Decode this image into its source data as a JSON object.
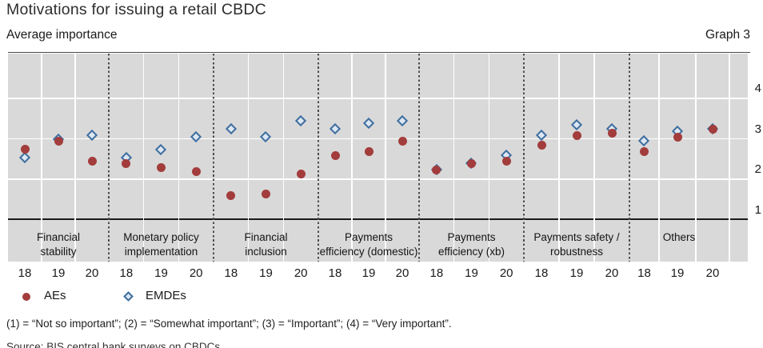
{
  "header": {
    "title": "Motivations for issuing a retail CBDC",
    "subtitle": "Average importance",
    "graph_label": "Graph 3"
  },
  "chart_data": {
    "type": "scatter",
    "title": "Motivations for issuing a retail CBDC",
    "ylabel": "Average importance",
    "yticks": [
      "4",
      "3",
      "2",
      "1"
    ],
    "ylim": [
      0.85,
      4.9
    ],
    "grid": true,
    "legend_position": "bottom-left",
    "categories": [
      {
        "label_lines": [
          "Financial",
          "stability"
        ]
      },
      {
        "label_lines": [
          "Monetary policy",
          "implementation"
        ]
      },
      {
        "label_lines": [
          "Financial",
          "inclusion"
        ]
      },
      {
        "label_lines": [
          "Payments",
          "efficiency (domestic)"
        ]
      },
      {
        "label_lines": [
          "Payments",
          "efficiency (xb)"
        ]
      },
      {
        "label_lines": [
          "Payments safety /",
          "robustness"
        ]
      },
      {
        "label_lines": [
          "Others"
        ]
      }
    ],
    "years": [
      "18",
      "19",
      "20"
    ],
    "series": [
      {
        "name": "AEs",
        "marker": "circle",
        "color": "#a33c3c",
        "values": [
          [
            2.5,
            2.7,
            2.2
          ],
          [
            2.15,
            2.05,
            1.95
          ],
          [
            1.35,
            1.4,
            1.9
          ],
          [
            2.35,
            2.45,
            2.7
          ],
          [
            2.0,
            2.15,
            2.2
          ],
          [
            2.6,
            2.85,
            2.9
          ],
          [
            2.45,
            2.8,
            3.0
          ]
        ]
      },
      {
        "name": "EMDEs",
        "marker": "diamond",
        "color": "#3f6e9e",
        "fill": "#dce7f3",
        "values": [
          [
            2.3,
            2.75,
            2.85
          ],
          [
            2.3,
            2.5,
            2.8
          ],
          [
            3.0,
            2.8,
            3.2
          ],
          [
            3.0,
            3.15,
            3.2
          ],
          [
            2.0,
            2.15,
            2.35
          ],
          [
            2.85,
            3.1,
            3.0
          ],
          [
            2.7,
            2.95,
            3.0
          ]
        ]
      }
    ]
  },
  "legend": {
    "items": [
      {
        "label": "AEs"
      },
      {
        "label": "EMDEs"
      }
    ]
  },
  "footnote": "(1) = “Not so important”; (2) = “Somewhat important”; (3) = “Important”; (4) = “Very important”.",
  "source": "Source: BIS central bank surveys on CBDCs."
}
